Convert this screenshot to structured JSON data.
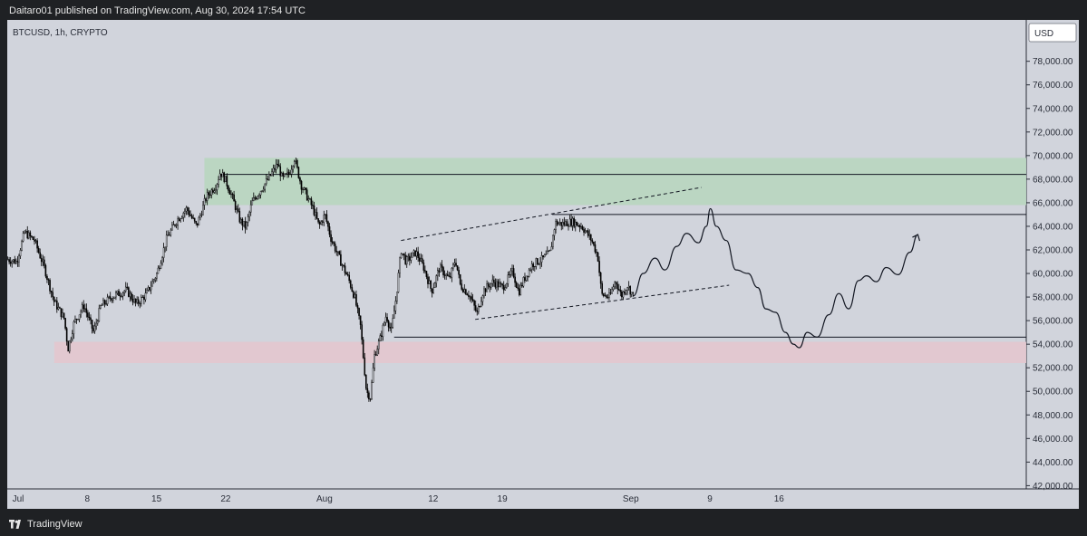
{
  "header": {
    "published_text": "Daitaro01 published on TradingView.com, Aug 30, 2024 17:54 UTC"
  },
  "footer": {
    "brand": "TradingView",
    "logo_icon": "tradingview-logo-icon"
  },
  "colors": {
    "frame": "#1f2124",
    "pane": "#d1d4dc",
    "candles": "#000000",
    "supply_zone": "#b9d6c0",
    "demand_zone": "#e3c7cf"
  },
  "chart_data": {
    "type": "candlestick",
    "symbol_label": "BTCUSD, 1h, CRYPTO",
    "currency_label": "USD",
    "ylim": [
      41800,
      80000
    ],
    "y_ticks": [
      "42,000.00",
      "44,000.00",
      "46,000.00",
      "48,000.00",
      "50,000.00",
      "52,000.00",
      "54,000.00",
      "56,000.00",
      "58,000.00",
      "60,000.00",
      "62,000.00",
      "64,000.00",
      "66,000.00",
      "68,000.00",
      "70,000.00",
      "72,000.00",
      "74,000.00",
      "76,000.00",
      "78,000.00"
    ],
    "x_ticks": [
      {
        "label": "Jul",
        "day": 0
      },
      {
        "label": "8",
        "day": 7
      },
      {
        "label": "15",
        "day": 14
      },
      {
        "label": "22",
        "day": 21
      },
      {
        "label": "Aug",
        "day": 31
      },
      {
        "label": "12",
        "day": 42
      },
      {
        "label": "19",
        "day": 49
      },
      {
        "label": "Sep",
        "day": 62
      },
      {
        "label": "9",
        "day": 70
      },
      {
        "label": "16",
        "day": 77
      }
    ],
    "price_path": [
      [
        -0.5,
        61200
      ],
      [
        0.4,
        61000
      ],
      [
        1.2,
        63500
      ],
      [
        2.2,
        62800
      ],
      [
        3.2,
        60500
      ],
      [
        4.2,
        57600
      ],
      [
        5.2,
        56200
      ],
      [
        5.6,
        53600
      ],
      [
        6.2,
        55800
      ],
      [
        7.2,
        57300
      ],
      [
        8.2,
        55000
      ],
      [
        8.9,
        57200
      ],
      [
        10.0,
        58000
      ],
      [
        11.5,
        58600
      ],
      [
        12.5,
        57400
      ],
      [
        13.5,
        58200
      ],
      [
        14.6,
        60000
      ],
      [
        15.6,
        63000
      ],
      [
        16.6,
        64500
      ],
      [
        17.6,
        65500
      ],
      [
        18.6,
        64000
      ],
      [
        19.6,
        66500
      ],
      [
        20.6,
        67500
      ],
      [
        21.0,
        68600
      ],
      [
        21.5,
        68000
      ],
      [
        22.2,
        66500
      ],
      [
        23.0,
        64500
      ],
      [
        23.6,
        63900
      ],
      [
        24.2,
        66000
      ],
      [
        25.2,
        67200
      ],
      [
        26.0,
        68200
      ],
      [
        26.8,
        69300
      ],
      [
        27.3,
        68000
      ],
      [
        28.0,
        68500
      ],
      [
        28.5,
        69800
      ],
      [
        29.2,
        67500
      ],
      [
        29.8,
        66500
      ],
      [
        30.4,
        65500
      ],
      [
        31.0,
        64000
      ],
      [
        31.6,
        65000
      ],
      [
        32.2,
        63000
      ],
      [
        33.2,
        61000
      ],
      [
        34.0,
        59500
      ],
      [
        34.6,
        58000
      ],
      [
        35.2,
        55500
      ],
      [
        35.8,
        50000
      ],
      [
        36.2,
        49500
      ],
      [
        36.6,
        53000
      ],
      [
        37.2,
        54500
      ],
      [
        37.8,
        56500
      ],
      [
        38.3,
        55000
      ],
      [
        38.8,
        58000
      ],
      [
        39.3,
        62000
      ],
      [
        39.8,
        61000
      ],
      [
        40.8,
        61800
      ],
      [
        41.6,
        60500
      ],
      [
        42.4,
        58500
      ],
      [
        43.2,
        60500
      ],
      [
        44.2,
        59500
      ],
      [
        44.8,
        61200
      ],
      [
        45.3,
        59000
      ],
      [
        46.2,
        58200
      ],
      [
        47.0,
        56600
      ],
      [
        47.6,
        58500
      ],
      [
        48.6,
        59300
      ],
      [
        49.6,
        58800
      ],
      [
        50.6,
        60200
      ],
      [
        51.2,
        58400
      ],
      [
        51.8,
        59600
      ],
      [
        52.6,
        60800
      ],
      [
        53.6,
        61200
      ],
      [
        54.4,
        61800
      ],
      [
        54.9,
        64300
      ],
      [
        55.6,
        64200
      ],
      [
        56.6,
        64400
      ],
      [
        57.6,
        64000
      ],
      [
        58.6,
        62800
      ],
      [
        59.2,
        61500
      ],
      [
        59.6,
        58200
      ],
      [
        60.4,
        58000
      ],
      [
        61.0,
        59400
      ],
      [
        61.6,
        58100
      ],
      [
        62.2,
        59000
      ],
      [
        62.8,
        58100
      ]
    ],
    "projection_path": [
      [
        62.8,
        58100
      ],
      [
        63.8,
        60000
      ],
      [
        65.0,
        61300
      ],
      [
        66.0,
        60300
      ],
      [
        67.2,
        62300
      ],
      [
        68.2,
        63400
      ],
      [
        69.4,
        62600
      ],
      [
        70.2,
        64000
      ],
      [
        70.6,
        65500
      ],
      [
        71.2,
        64000
      ],
      [
        72.2,
        62800
      ],
      [
        73.2,
        60300
      ],
      [
        74.4,
        60000
      ],
      [
        75.4,
        58800
      ],
      [
        76.2,
        57000
      ],
      [
        77.2,
        56700
      ],
      [
        78.2,
        55000
      ],
      [
        79.0,
        54000
      ],
      [
        79.6,
        53700
      ],
      [
        80.4,
        55000
      ],
      [
        81.4,
        54600
      ],
      [
        82.6,
        56500
      ],
      [
        83.6,
        58300
      ],
      [
        84.6,
        57000
      ],
      [
        85.6,
        59400
      ],
      [
        86.4,
        59800
      ],
      [
        87.4,
        59300
      ],
      [
        88.4,
        60500
      ],
      [
        89.6,
        59900
      ],
      [
        90.8,
        61800
      ],
      [
        91.6,
        63300
      ]
    ],
    "zones": [
      {
        "kind": "supply",
        "from_day": 19.4,
        "to_day": "right-edge",
        "low": 65800,
        "high": 69800
      },
      {
        "kind": "demand",
        "from_day": 4.2,
        "to_day": "right-edge",
        "low": 52400,
        "high": 54200
      }
    ],
    "horizontal_levels": [
      {
        "from_day": 21.0,
        "price": 68400
      },
      {
        "from_day": 54.6,
        "price": 65000
      },
      {
        "from_day": 38.6,
        "price": 54600
      }
    ],
    "channel_lines": [
      {
        "from": [
          39.3,
          62800
        ],
        "to": [
          69.7,
          67300
        ],
        "style": "dashed"
      },
      {
        "from": [
          46.8,
          56100
        ],
        "to": [
          72.5,
          59000
        ],
        "style": "dashed"
      }
    ]
  }
}
